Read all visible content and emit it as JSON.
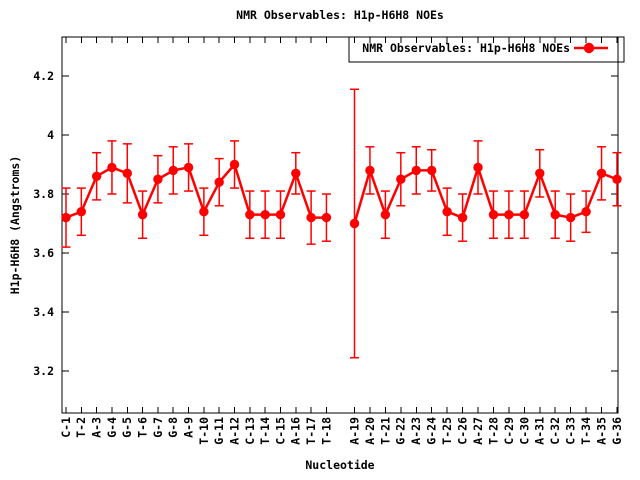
{
  "colors": {
    "series": "#ff0000",
    "axis": "#000000",
    "background": "#ffffff"
  },
  "chart_data": {
    "type": "scatter",
    "title": "NMR Observables: H1p-H6H8 NOEs",
    "series_name": "NMR Observables: H1p-H6H8 NOEs",
    "xlabel": "Nucleotide",
    "ylabel": "H1p-H6H8 (Angstroms)",
    "legend_position": "top-right",
    "marker": "filled-circle",
    "error_bars": true,
    "ylim": [
      3.06,
      4.33
    ],
    "yticks": [
      {
        "value": 3.2,
        "label": "3.2"
      },
      {
        "value": 3.4,
        "label": "3.4"
      },
      {
        "value": 3.6,
        "label": "3.6"
      },
      {
        "value": 3.8,
        "label": "3.8"
      },
      {
        "value": 4.0,
        "label": "4"
      },
      {
        "value": 4.2,
        "label": "4.2"
      }
    ],
    "gap_after_index": 17,
    "categories": [
      "C-1",
      "T-2",
      "A-3",
      "G-4",
      "G-5",
      "T-6",
      "G-7",
      "G-8",
      "A-9",
      "T-10",
      "G-11",
      "A-12",
      "C-13",
      "T-14",
      "C-15",
      "A-16",
      "T-17",
      "T-18",
      "A-19",
      "A-20",
      "T-21",
      "G-22",
      "A-23",
      "G-24",
      "T-25",
      "C-26",
      "A-27",
      "T-28",
      "C-29",
      "C-30",
      "A-31",
      "C-32",
      "C-33",
      "T-34",
      "A-35",
      "G-36"
    ],
    "values": [
      3.72,
      3.74,
      3.86,
      3.89,
      3.87,
      3.73,
      3.85,
      3.88,
      3.89,
      3.74,
      3.84,
      3.9,
      3.73,
      3.73,
      3.73,
      3.87,
      3.72,
      3.72,
      3.7,
      3.88,
      3.73,
      3.85,
      3.88,
      3.88,
      3.74,
      3.72,
      3.89,
      3.73,
      3.73,
      3.73,
      3.87,
      3.73,
      3.72,
      3.74,
      3.87,
      3.85
    ],
    "errors": [
      0.1,
      0.08,
      0.08,
      0.09,
      0.1,
      0.08,
      0.08,
      0.08,
      0.08,
      0.08,
      0.08,
      0.08,
      0.08,
      0.08,
      0.08,
      0.07,
      0.09,
      0.08,
      0.455,
      0.08,
      0.08,
      0.09,
      0.08,
      0.07,
      0.08,
      0.08,
      0.09,
      0.08,
      0.08,
      0.08,
      0.08,
      0.08,
      0.08,
      0.07,
      0.09,
      0.09
    ]
  }
}
